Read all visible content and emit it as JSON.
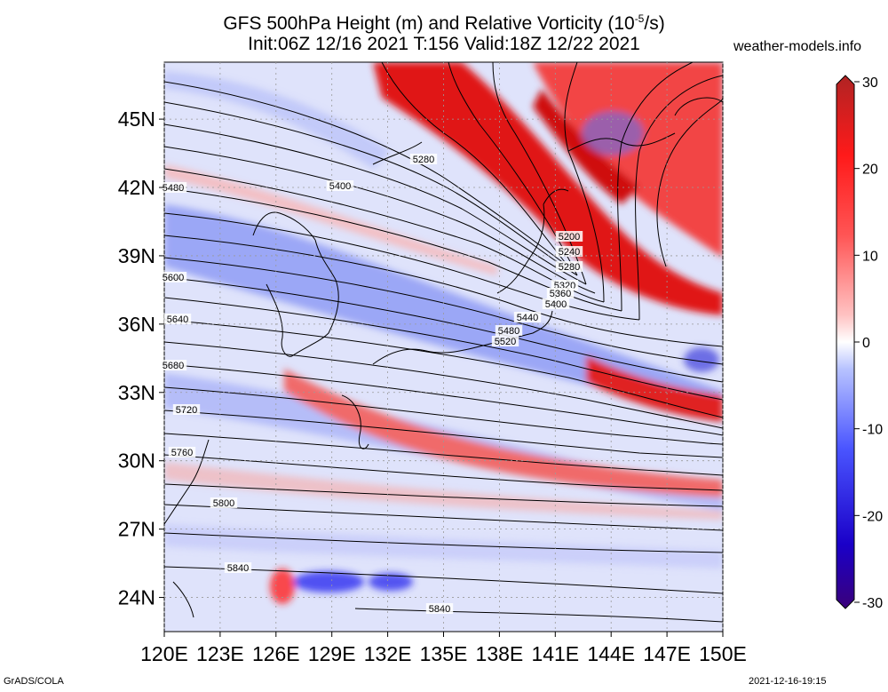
{
  "header": {
    "title_line1_prefix": "GFS 500hPa Height (m) and Relative Vorticity (10",
    "title_line1_exp": "-5",
    "title_line1_suffix": "/s)",
    "title_line2": "Init:06Z 12/16 2021 T:156 Valid:18Z 12/22 2021",
    "site": "weather-models.info"
  },
  "footer": {
    "left": "GrADS/COLA",
    "right": "2021-12-16-19:15"
  },
  "map": {
    "lon_labels": [
      "120E",
      "123E",
      "126E",
      "129E",
      "132E",
      "135E",
      "138E",
      "141E",
      "144E",
      "147E",
      "150E"
    ],
    "lat_labels": [
      "45N",
      "42N",
      "39N",
      "36N",
      "33N",
      "30N",
      "27N",
      "24N"
    ],
    "lon_range": [
      120,
      150
    ],
    "lat_range": [
      22.5,
      47.5
    ],
    "contour_labels": [
      "5280",
      "5400",
      "5480",
      "5600",
      "5640",
      "5680",
      "5720",
      "5760",
      "5800",
      "5840",
      "5840",
      "5200",
      "5240",
      "5280",
      "5320",
      "5360",
      "5400",
      "5440",
      "5480",
      "5520"
    ]
  },
  "colorbar": {
    "ticks": [
      "30",
      "20",
      "10",
      "0",
      "-10",
      "-20",
      "-30"
    ],
    "range": [
      -30,
      30
    ],
    "colors": [
      "#4b0082",
      "#1a00c8",
      "#3344ff",
      "#8fa4ff",
      "#ffffff",
      "#ff9a9a",
      "#ff2a2a",
      "#c81414",
      "#b02323"
    ]
  }
}
